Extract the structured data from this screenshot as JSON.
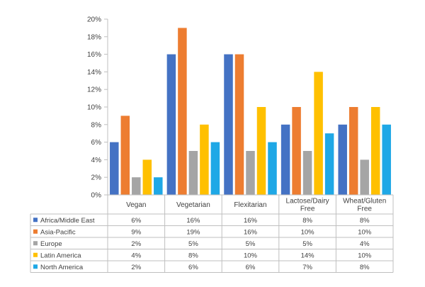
{
  "chart_data": {
    "type": "bar",
    "categories": [
      "Vegan",
      "Vegetarian",
      "Flexitarian",
      "Lactose/Dairy Free",
      "Wheat/Gluten Free"
    ],
    "category_lines": [
      [
        "Vegan"
      ],
      [
        "Vegetarian"
      ],
      [
        "Flexitarian"
      ],
      [
        "Lactose/Dairy",
        "Free"
      ],
      [
        "Wheat/Gluten",
        "Free"
      ]
    ],
    "y_ticks": [
      "0%",
      "2%",
      "4%",
      "6%",
      "8%",
      "10%",
      "12%",
      "14%",
      "16%",
      "18%",
      "20%"
    ],
    "ylim": [
      0,
      20
    ],
    "series": [
      {
        "name": "Africa/Middle East",
        "color": "#4472C4",
        "values": [
          6,
          16,
          16,
          8,
          8
        ],
        "labels": [
          "6%",
          "16%",
          "16%",
          "8%",
          "8%"
        ]
      },
      {
        "name": "Asia-Pacific",
        "color": "#ED7D31",
        "values": [
          9,
          19,
          16,
          10,
          10
        ],
        "labels": [
          "9%",
          "19%",
          "16%",
          "10%",
          "10%"
        ]
      },
      {
        "name": "Europe",
        "color": "#A5A5A5",
        "values": [
          2,
          5,
          5,
          5,
          4
        ],
        "labels": [
          "2%",
          "5%",
          "5%",
          "5%",
          "4%"
        ]
      },
      {
        "name": "Latin America",
        "color": "#FFC000",
        "values": [
          4,
          8,
          10,
          14,
          10
        ],
        "labels": [
          "4%",
          "8%",
          "10%",
          "14%",
          "10%"
        ]
      },
      {
        "name": "North America",
        "color": "#1FA8E6",
        "values": [
          2,
          6,
          6,
          7,
          8
        ],
        "labels": [
          "2%",
          "6%",
          "6%",
          "7%",
          "8%"
        ]
      }
    ],
    "grid": false,
    "legend": "data-table-left"
  }
}
